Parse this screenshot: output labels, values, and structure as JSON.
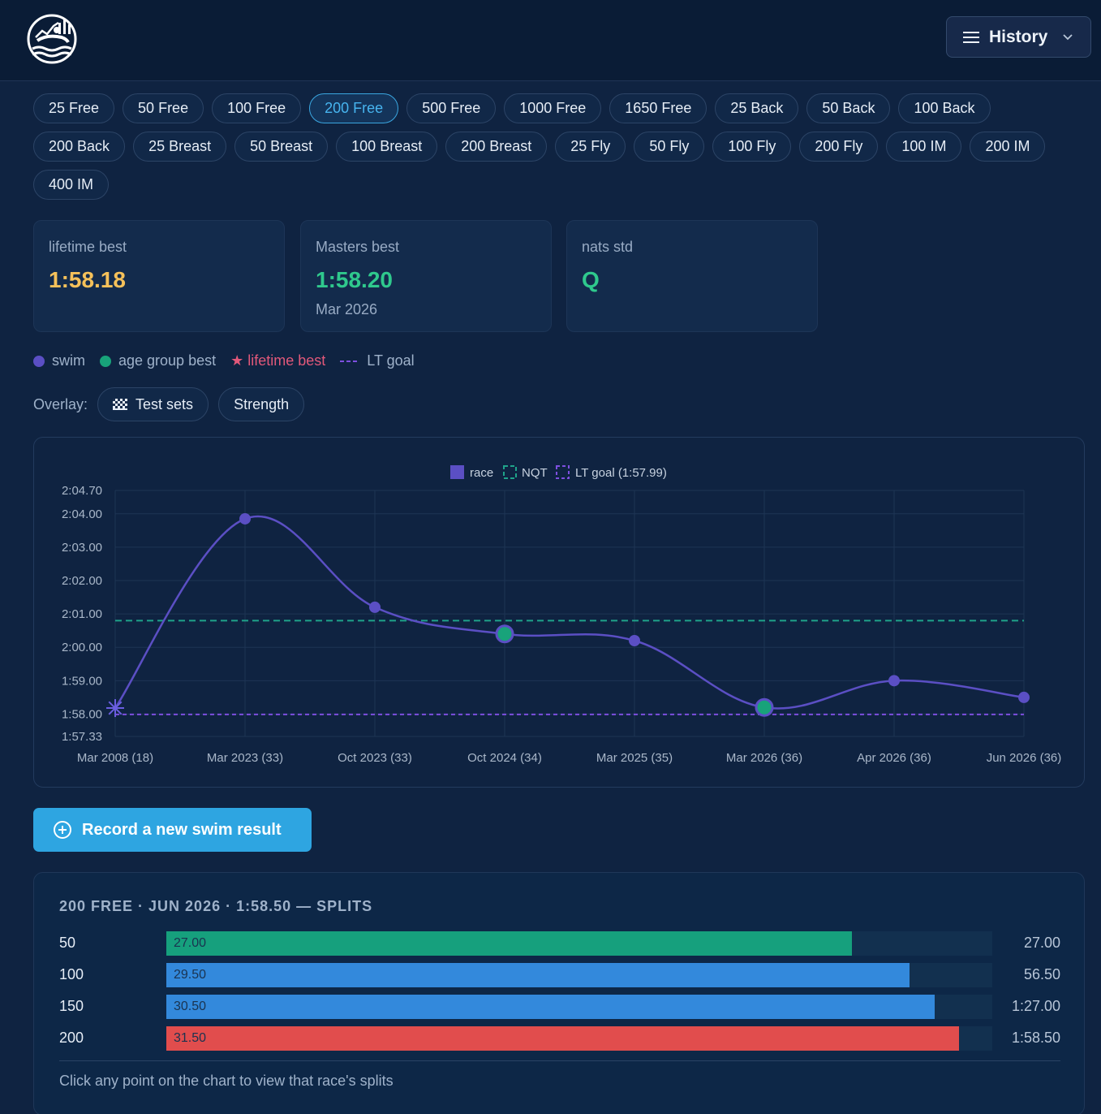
{
  "header": {
    "history_label": "History"
  },
  "events": [
    "25 Free",
    "50 Free",
    "100 Free",
    "200 Free",
    "500 Free",
    "1000 Free",
    "1650 Free",
    "25 Back",
    "50 Back",
    "100 Back",
    "200 Back",
    "25 Breast",
    "50 Breast",
    "100 Breast",
    "200 Breast",
    "25 Fly",
    "50 Fly",
    "100 Fly",
    "200 Fly",
    "100 IM",
    "200 IM",
    "400 IM"
  ],
  "selected_event": "200 Free",
  "cards": {
    "lifetime": {
      "label": "lifetime best",
      "value": "1:58.18"
    },
    "masters": {
      "label": "Masters best",
      "value": "1:58.20",
      "sub": "Mar 2026"
    },
    "nats": {
      "label": "nats std",
      "value": "Q"
    }
  },
  "legend": {
    "swim": "swim",
    "age_group_best": "age group best",
    "lifetime_best": "★ lifetime best",
    "lt_goal": "LT goal"
  },
  "overlay": {
    "label": "Overlay:",
    "test_sets": "Test sets",
    "strength": "Strength"
  },
  "colors": {
    "race": "#5b4fc4",
    "nqt": "#1fa38a",
    "lt_goal": "#7d4fe0",
    "agb": "#18a37a",
    "lifetime": "#e2587a",
    "accent": "#2ea5e1",
    "yellow": "#f5c15a",
    "green": "#2fc98d"
  },
  "chart_data": {
    "type": "line",
    "legend": [
      "race",
      "NQT",
      "LT goal (1:57.99)"
    ],
    "x": [
      "Mar 2008 (18)",
      "Mar 2023 (33)",
      "Oct 2023 (33)",
      "Oct 2024 (34)",
      "Mar 2025 (35)",
      "Mar 2026 (36)",
      "Apr 2026 (36)",
      "Jun 2026 (36)"
    ],
    "series": [
      {
        "name": "race",
        "values": [
          118.18,
          123.85,
          121.2,
          120.4,
          120.2,
          118.2,
          119.0,
          118.5
        ]
      }
    ],
    "age_group_best_idx": [
      3,
      5
    ],
    "lifetime_best_idx": [
      0
    ],
    "nqt": 120.8,
    "lt_goal": 117.99,
    "ylim": [
      117.33,
      124.7
    ],
    "y_ticks": [
      {
        "v": 124.7,
        "label": "2:04.70"
      },
      {
        "v": 124.0,
        "label": "2:04.00"
      },
      {
        "v": 123.0,
        "label": "2:03.00"
      },
      {
        "v": 122.0,
        "label": "2:02.00"
      },
      {
        "v": 121.0,
        "label": "2:01.00"
      },
      {
        "v": 120.0,
        "label": "2:00.00"
      },
      {
        "v": 119.0,
        "label": "1:59.00"
      },
      {
        "v": 118.0,
        "label": "1:58.00"
      },
      {
        "v": 117.33,
        "label": "1:57.33"
      }
    ],
    "grid": true,
    "legend_position": "top-center"
  },
  "record_button": "Record a new swim result",
  "splits": {
    "title": "200 FREE · JUN 2026 · 1:58.50 — SPLITS",
    "rows": [
      {
        "dist": "50",
        "lap": "27.00",
        "cum": "27.00",
        "fraction": 0.83,
        "color": "#16a07d"
      },
      {
        "dist": "100",
        "lap": "29.50",
        "cum": "56.50",
        "fraction": 0.9,
        "color": "#3389dc"
      },
      {
        "dist": "150",
        "lap": "30.50",
        "cum": "1:27.00",
        "fraction": 0.93,
        "color": "#3389dc"
      },
      {
        "dist": "200",
        "lap": "31.50",
        "cum": "1:58.50",
        "fraction": 0.96,
        "color": "#e14d4d"
      }
    ],
    "hint": "Click any point on the chart to view that race's splits"
  }
}
